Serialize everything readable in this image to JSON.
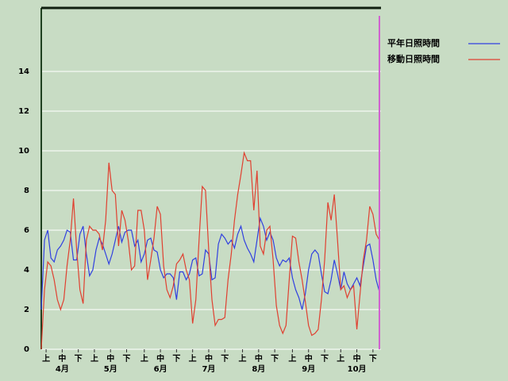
{
  "chart_data": {
    "type": "line",
    "x": [
      0,
      2,
      4,
      6,
      8,
      10,
      12,
      14,
      16,
      18,
      20,
      22,
      24,
      26,
      28,
      30,
      32,
      34,
      36,
      38,
      40,
      42,
      44,
      46,
      48,
      50,
      52,
      54,
      56,
      58,
      60,
      62,
      64,
      66,
      68,
      70,
      72,
      74,
      76,
      78,
      80,
      82,
      84,
      86,
      88,
      90,
      92,
      94,
      96,
      98,
      100,
      102,
      104,
      106,
      108,
      110,
      112,
      114,
      116,
      118,
      120,
      122,
      124,
      126,
      128,
      130,
      132,
      134,
      136,
      138,
      140,
      142,
      144,
      146,
      148,
      150,
      152,
      154,
      156,
      158,
      160,
      162,
      164,
      166,
      168,
      170,
      172,
      174,
      176,
      178,
      180,
      182,
      184,
      186,
      188,
      190,
      192,
      194,
      196,
      198,
      200,
      202,
      204,
      206,
      208,
      210
    ],
    "series": [
      {
        "name": "平年日照時間",
        "color": "#3040e0",
        "values": [
          2,
          5.5,
          6,
          4.6,
          4.4,
          5,
          5.2,
          5.5,
          6,
          5.9,
          4.5,
          4.5,
          5.8,
          6.2,
          4.8,
          3.7,
          4,
          5,
          5.6,
          5.3,
          4.8,
          4.3,
          4.8,
          5.5,
          6.2,
          5.4,
          5.9,
          6,
          6,
          5.2,
          5.5,
          4.4,
          4.8,
          5.5,
          5.6,
          5,
          4.9,
          4,
          3.6,
          3.8,
          3.8,
          3.6,
          2.5,
          3.9,
          3.9,
          3.5,
          3.8,
          4.5,
          4.6,
          3.7,
          3.8,
          5,
          4.8,
          3.5,
          3.6,
          5.3,
          5.8,
          5.6,
          5.3,
          5.5,
          5.1,
          5.8,
          6.2,
          5.5,
          5.1,
          4.8,
          4.4,
          5.5,
          6.6,
          6.2,
          5.5,
          5.9,
          5.5,
          4.6,
          4.2,
          4.5,
          4.4,
          4.6,
          3.6,
          3,
          2.6,
          2,
          2.8,
          4,
          4.8,
          5,
          4.8,
          3.8,
          2.9,
          2.8,
          3.5,
          4.5,
          3.8,
          3,
          3.9,
          3.3,
          3,
          3.3,
          3.6,
          3.2,
          4.2,
          5.2,
          5.3,
          4.5,
          3.5,
          2.9
        ]
      },
      {
        "name": "移動日照時間",
        "color": "#e04030",
        "values": [
          0,
          3,
          4.4,
          4.2,
          3.5,
          2.5,
          2,
          2.5,
          4.2,
          5.5,
          7.6,
          5,
          3,
          2.3,
          5.5,
          6.2,
          6,
          6,
          5.8,
          5,
          6.5,
          9.4,
          8,
          7.8,
          5.2,
          7,
          6.5,
          5.5,
          4,
          4.2,
          7,
          7,
          6,
          3.5,
          4.5,
          5.6,
          7.2,
          6.8,
          4.2,
          3,
          2.6,
          3.2,
          4.3,
          4.5,
          4.8,
          4,
          3.5,
          1.3,
          2.5,
          5.5,
          8.2,
          8,
          5,
          2.5,
          1.2,
          1.5,
          1.5,
          1.6,
          3.5,
          4.8,
          6.5,
          7.8,
          8.8,
          9.9,
          9.5,
          9.5,
          7,
          9,
          5.2,
          4.8,
          6,
          6.2,
          4.5,
          2.2,
          1.2,
          0.8,
          1.2,
          3.5,
          5.7,
          5.6,
          4.4,
          3.5,
          2.4,
          1.2,
          0.7,
          0.8,
          1,
          2.5,
          4.5,
          7.4,
          6.5,
          7.8,
          5.5,
          3,
          3.2,
          2.6,
          3,
          3.2,
          1,
          2.8,
          4.5,
          5.5,
          7.2,
          6.8,
          5.8,
          5.5
        ]
      }
    ],
    "xlim": [
      0,
      211
    ],
    "xticks": [
      {
        "value": 3,
        "label": "上"
      },
      {
        "value": 13,
        "label": "中"
      },
      {
        "value": 23,
        "label": "下"
      },
      {
        "value": 33,
        "label": "上"
      },
      {
        "value": 43,
        "label": "中"
      },
      {
        "value": 53,
        "label": "下"
      },
      {
        "value": 64,
        "label": "上"
      },
      {
        "value": 74,
        "label": "中"
      },
      {
        "value": 84,
        "label": "下"
      },
      {
        "value": 94,
        "label": "上"
      },
      {
        "value": 104,
        "label": "中"
      },
      {
        "value": 114,
        "label": "下"
      },
      {
        "value": 125,
        "label": "上"
      },
      {
        "value": 135,
        "label": "中"
      },
      {
        "value": 145,
        "label": "下"
      },
      {
        "value": 156,
        "label": "上"
      },
      {
        "value": 166,
        "label": "中"
      },
      {
        "value": 176,
        "label": "下"
      },
      {
        "value": 186,
        "label": "上"
      },
      {
        "value": 196,
        "label": "中"
      },
      {
        "value": 206,
        "label": "下"
      }
    ],
    "months": [
      "4月",
      "5月",
      "6月",
      "7月",
      "8月",
      "9月",
      "10月"
    ],
    "ylim": [
      0,
      17.2
    ],
    "yticks": [
      0,
      2,
      4,
      6,
      8,
      10,
      12,
      14
    ],
    "grid": true,
    "marker_x": 210,
    "marker_color": "#d060d0"
  }
}
